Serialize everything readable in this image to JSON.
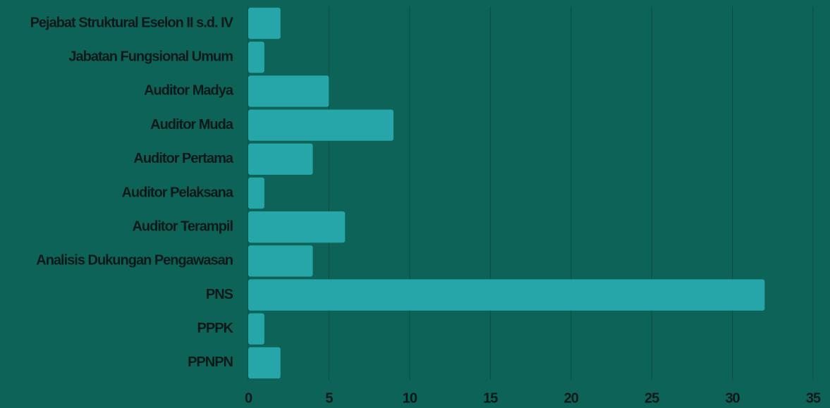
{
  "chart_data": {
    "type": "bar",
    "orientation": "horizontal",
    "categories": [
      "Pejabat Struktural Eselon II s.d. IV",
      "Jabatan Fungsional Umum",
      "Auditor Madya",
      "Auditor Muda",
      "Auditor Pertama",
      "Auditor Pelaksana",
      "Auditor Terampil",
      "Analisis Dukungan Pengawasan",
      "PNS",
      "PPPK",
      "PPNPN"
    ],
    "values": [
      2,
      1,
      5,
      9,
      4,
      1,
      6,
      4,
      32,
      1,
      2
    ],
    "color": "#26a6a8",
    "xlim": [
      0,
      35
    ],
    "xticks": [
      0,
      5,
      10,
      15,
      20,
      25,
      30,
      35
    ],
    "grid": true
  }
}
